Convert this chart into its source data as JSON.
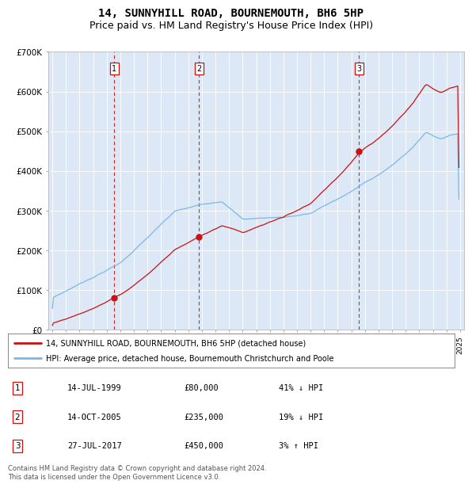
{
  "title": "14, SUNNYHILL ROAD, BOURNEMOUTH, BH6 5HP",
  "subtitle": "Price paid vs. HM Land Registry's House Price Index (HPI)",
  "ylim": [
    0,
    700000
  ],
  "yticks": [
    0,
    100000,
    200000,
    300000,
    400000,
    500000,
    600000,
    700000
  ],
  "ytick_labels": [
    "£0",
    "£100K",
    "£200K",
    "£300K",
    "£400K",
    "£500K",
    "£600K",
    "£700K"
  ],
  "plot_bg_color": "#dce8f5",
  "hpi_color": "#7ab8e8",
  "price_color": "#cc1111",
  "vline_color": "#cc1111",
  "sale_year_vals": [
    1999.54,
    2005.79,
    2017.57
  ],
  "sale_prices": [
    80000,
    235000,
    450000
  ],
  "sale_labels": [
    "1",
    "2",
    "3"
  ],
  "legend_line1": "14, SUNNYHILL ROAD, BOURNEMOUTH, BH6 5HP (detached house)",
  "legend_line2": "HPI: Average price, detached house, Bournemouth Christchurch and Poole",
  "table_rows": [
    [
      "1",
      "14-JUL-1999",
      "£80,000",
      "41% ↓ HPI"
    ],
    [
      "2",
      "14-OCT-2005",
      "£235,000",
      "19% ↓ HPI"
    ],
    [
      "3",
      "27-JUL-2017",
      "£450,000",
      "3% ↑ HPI"
    ]
  ],
  "footer": "Contains HM Land Registry data © Crown copyright and database right 2024.\nThis data is licensed under the Open Government Licence v3.0.",
  "title_fontsize": 10,
  "subtitle_fontsize": 9
}
